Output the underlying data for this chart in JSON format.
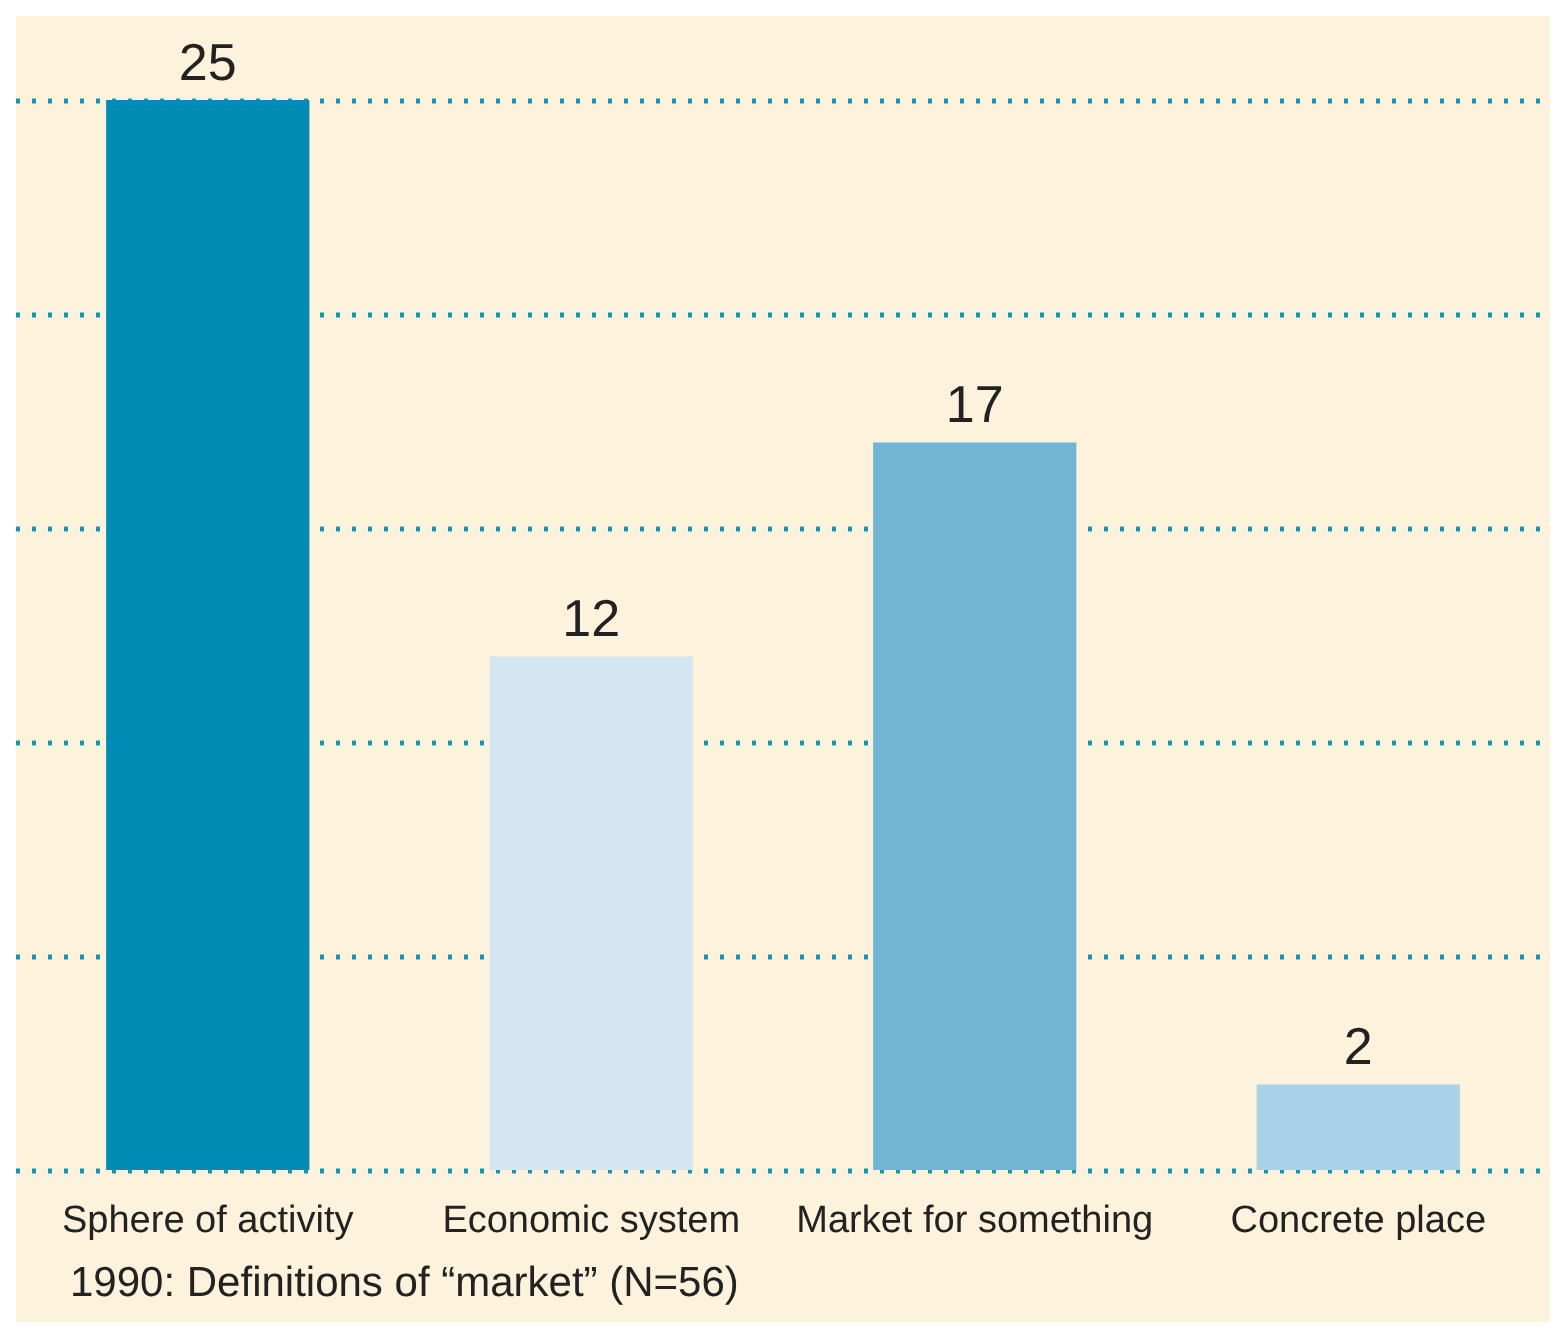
{
  "chart_data": {
    "type": "bar",
    "title": "1990: Definitions of “market” (N=56)",
    "categories": [
      "Sphere of activity",
      "Economic system",
      "Market for something",
      "Concrete place"
    ],
    "values": [
      25,
      12,
      17,
      2
    ],
    "colors": [
      "#008bb5",
      "#d4e6f2",
      "#72b4d4",
      "#a8d2e8"
    ],
    "ylim": [
      0,
      25
    ],
    "yticks": [
      {
        "value": 0,
        "label": null
      },
      {
        "value": 5,
        "label": null
      },
      {
        "value": 10,
        "label": null
      },
      {
        "value": 15,
        "label": null
      },
      {
        "value": 20,
        "label": null
      },
      {
        "value": 25,
        "label": null
      }
    ],
    "grid": "y",
    "data_labels": true,
    "tick_labels": "x"
  }
}
